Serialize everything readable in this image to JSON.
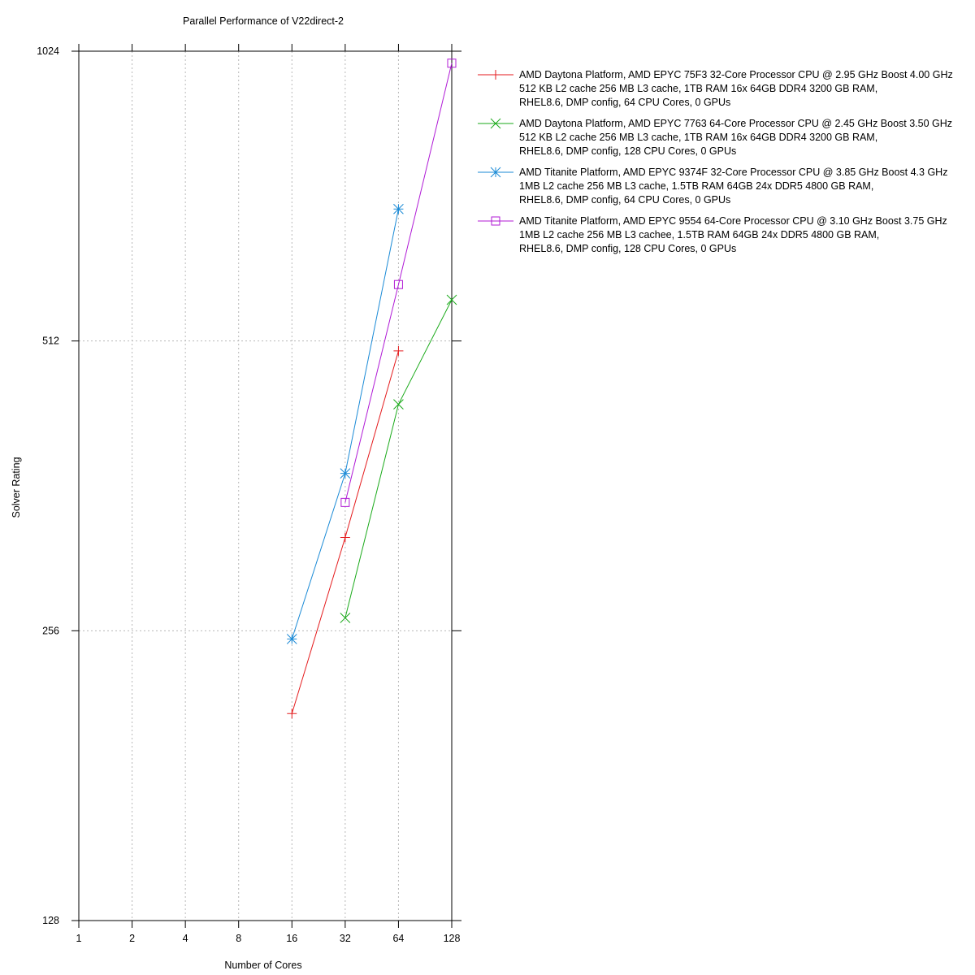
{
  "chart_data": {
    "type": "line",
    "title": "Parallel Performance of V22direct-2",
    "xlabel": "Number of Cores",
    "ylabel": "Solver Rating",
    "x_scale": "log2",
    "y_scale": "log2",
    "xlim": [
      1,
      128
    ],
    "ylim": [
      128,
      1024
    ],
    "x_ticks": [
      "1",
      "2",
      "4",
      "8",
      "16",
      "32",
      "64",
      "128"
    ],
    "y_ticks": [
      "128",
      "256",
      "512",
      "1024"
    ],
    "grid": true,
    "legend_position": "right",
    "series": [
      {
        "name": "AMD Daytona Platform, AMD EPYC 75F3 32-Core Processor CPU @ 2.95 GHz Boost 4.00 GHz",
        "legend_lines": [
          "AMD Daytona Platform, AMD EPYC 75F3 32-Core Processor CPU @ 2.95 GHz Boost 4.00 GHz",
          "512 KB L2 cache 256 MB L3 cache, 1TB RAM 16x 64GB DDR4 3200 GB RAM,",
          "RHEL8.6, DMP config, 64 CPU Cores, 0 GPUs"
        ],
        "color": "#e41a1c",
        "marker": "plus",
        "x": [
          16,
          32,
          64
        ],
        "y": [
          210,
          320,
          500
        ]
      },
      {
        "name": "AMD Daytona Platform, AMD EPYC 7763 64-Core Processor CPU @ 2.45 GHz Boost 3.50 GHz",
        "legend_lines": [
          "AMD Daytona Platform, AMD EPYC 7763 64-Core Processor CPU @ 2.45 GHz Boost 3.50 GHz",
          "512 KB L2 cache 256 MB L3 cache, 1TB RAM 16x 64GB DDR4 3200 GB RAM,",
          "RHEL8.6, DMP config, 128 CPU Cores, 0 GPUs"
        ],
        "color": "#1aaa1a",
        "marker": "x",
        "x": [
          32,
          64,
          128
        ],
        "y": [
          264,
          440,
          565
        ]
      },
      {
        "name": "AMD Titanite Platform, AMD EPYC 9374F 32-Core Processor CPU @ 3.85 GHz Boost 4.3 GHz",
        "legend_lines": [
          "AMD Titanite Platform, AMD EPYC 9374F 32-Core Processor CPU @ 3.85 GHz Boost 4.3 GHz",
          "  1MB L2 cache 256 MB L3 cache, 1.5TB RAM 64GB 24x DDR5 4800 GB RAM,",
          "RHEL8.6, DMP config, 64 CPU Cores, 0 GPUs"
        ],
        "color": "#1a8ad6",
        "marker": "asterisk",
        "x": [
          16,
          32,
          64
        ],
        "y": [
          251,
          373,
          702
        ]
      },
      {
        "name": "AMD Titanite Platform, AMD EPYC 9554 64-Core Processor CPU @ 3.10 GHz Boost 3.75 GHz",
        "legend_lines": [
          "AMD Titanite Platform, AMD EPYC 9554 64-Core Processor CPU @ 3.10 GHz Boost 3.75 GHz",
          " 1MB L2 cache 256 MB L3 cachee, 1.5TB RAM 64GB 24x DDR5 4800 GB RAM,",
          "RHEL8.6, DMP config, 128 CPU Cores, 0 GPUs"
        ],
        "color": "#b01ad6",
        "marker": "square",
        "x": [
          32,
          64,
          128
        ],
        "y": [
          348,
          586,
          995
        ]
      }
    ]
  }
}
